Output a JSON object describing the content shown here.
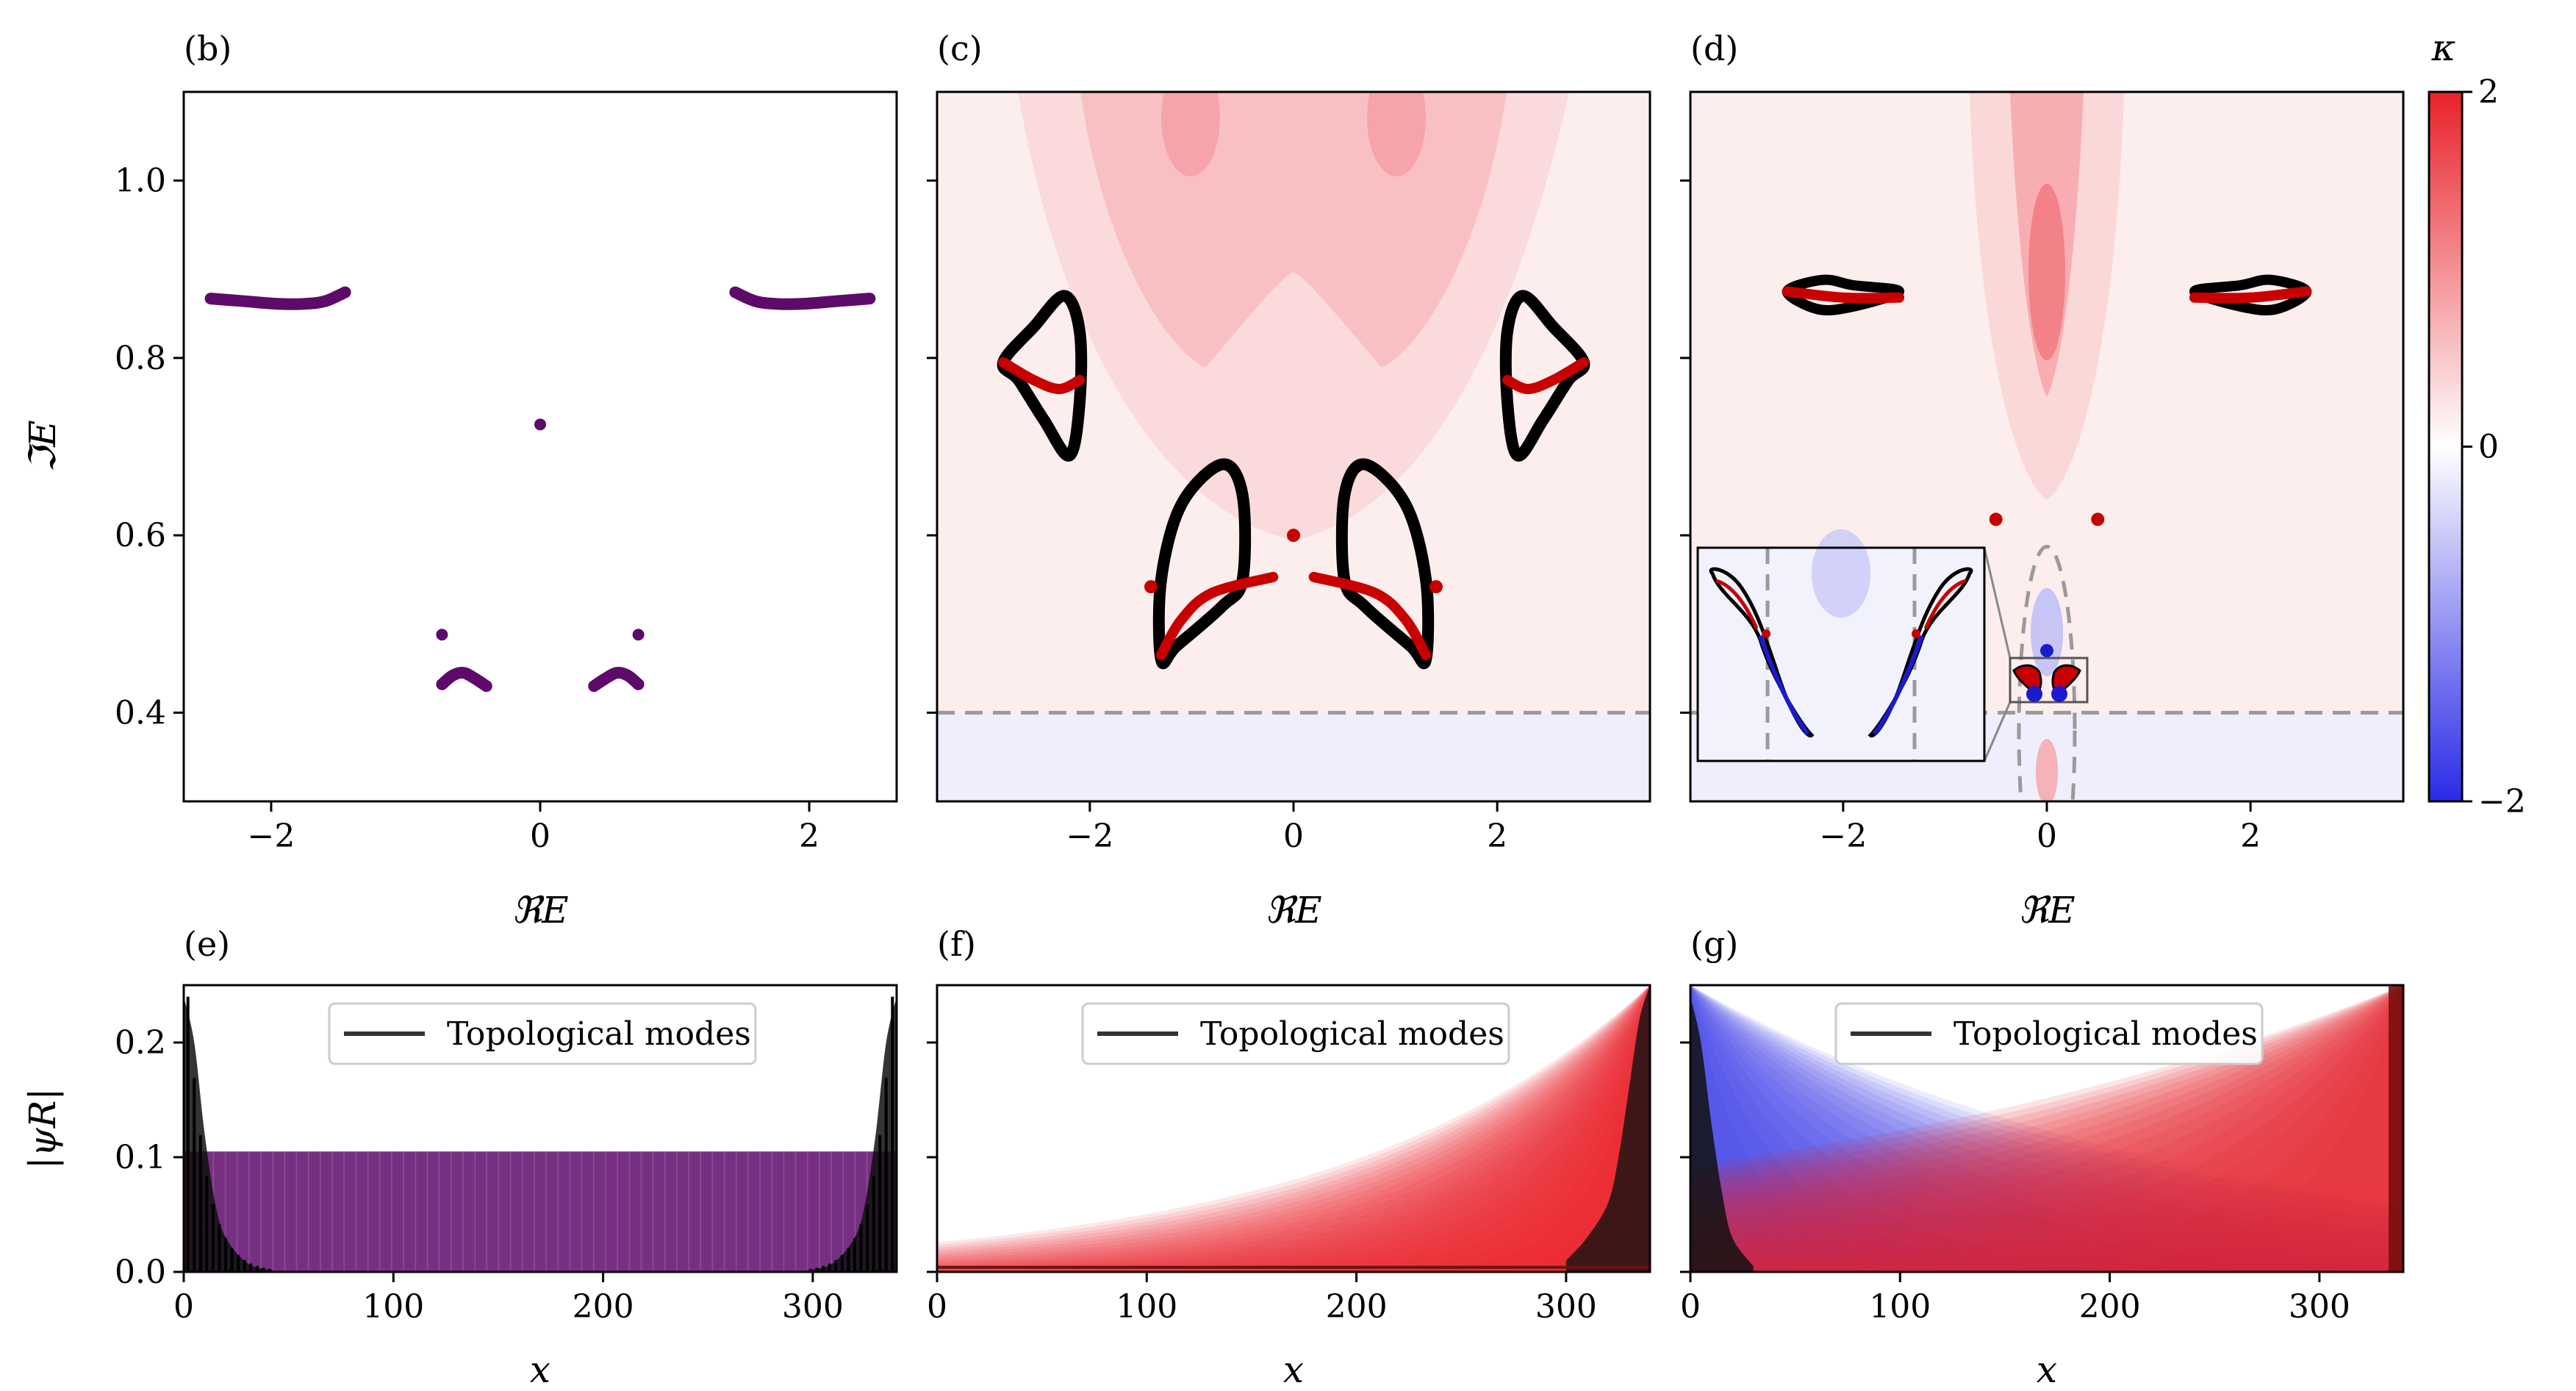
{
  "panels": {
    "b": {
      "label": "(b)"
    },
    "c": {
      "label": "(c)"
    },
    "d": {
      "label": "(d)"
    },
    "e": {
      "label": "(e)"
    },
    "f": {
      "label": "(f)"
    },
    "g": {
      "label": "(g)"
    }
  },
  "labels": {
    "re_axis": "ℜE",
    "im_axis": "ℑE",
    "x_axis": "x",
    "psi_axis": "|ψR|",
    "legend": "Topological modes",
    "colorbar_title": "κ"
  },
  "colors": {
    "purple": "#5e0a6b",
    "spectrum_black": "#000000",
    "red": "#c80000",
    "blue": "#1a1ad0",
    "dashed": "#9a9a9a",
    "kappa_positive": "#e8222a",
    "kappa_negative": "#2a2ae8"
  },
  "chart_data": [
    {
      "panel": "b",
      "type": "scatter",
      "xlabel": "ℜE",
      "ylabel": "ℑE",
      "xlim": [
        -2.65,
        2.65
      ],
      "ylim": [
        0.3,
        1.1
      ],
      "xticks": [
        -2,
        0,
        2
      ],
      "xtick_labels": [
        "−2",
        "0",
        "2"
      ],
      "yticks": [
        0.4,
        0.6,
        0.8,
        1.0
      ],
      "ytick_labels": [
        "0.4",
        "0.6",
        "0.8",
        "1.0"
      ],
      "series": [
        {
          "arc": "left-upper",
          "x": [
            -2.45,
            -2.2,
            -1.95,
            -1.75,
            -1.6,
            -1.45
          ],
          "y": [
            0.867,
            0.864,
            0.861,
            0.861,
            0.864,
            0.874
          ]
        },
        {
          "arc": "right-upper",
          "x": [
            1.45,
            1.6,
            1.75,
            1.95,
            2.2,
            2.45
          ],
          "y": [
            0.874,
            0.864,
            0.861,
            0.861,
            0.864,
            0.867
          ]
        },
        {
          "arc": "left-lower",
          "x": [
            -0.73,
            -0.65,
            -0.57,
            -0.48,
            -0.4
          ],
          "y": [
            0.432,
            0.442,
            0.445,
            0.438,
            0.43
          ]
        },
        {
          "arc": "right-lower",
          "x": [
            0.4,
            0.48,
            0.57,
            0.65,
            0.73
          ],
          "y": [
            0.43,
            0.438,
            0.445,
            0.442,
            0.432
          ]
        }
      ],
      "points": [
        [
          0,
          0.725
        ],
        [
          -0.73,
          0.488
        ],
        [
          0.73,
          0.488
        ]
      ]
    },
    {
      "panel": "c",
      "type": "heatmap",
      "xlabel": "ℜE",
      "xlim": [
        -3.5,
        3.5
      ],
      "ylim": [
        0.3,
        1.1
      ],
      "xticks": [
        -2,
        0,
        2
      ],
      "xtick_labels": [
        "−2",
        "0",
        "2"
      ],
      "dashed_line_y": 0.4,
      "loops": [
        {
          "name": "upper-left",
          "outline": [
            [
              -2.85,
              0.795
            ],
            [
              -2.7,
              0.775
            ],
            [
              -2.45,
              0.73
            ],
            [
              -2.2,
              0.69
            ],
            [
              -2.1,
              0.75
            ],
            [
              -2.1,
              0.83
            ],
            [
              -2.25,
              0.87
            ],
            [
              -2.55,
              0.835
            ]
          ],
          "branch": [
            [
              -2.85,
              0.795
            ],
            [
              -2.55,
              0.775
            ],
            [
              -2.3,
              0.765
            ],
            [
              -2.1,
              0.775
            ]
          ]
        },
        {
          "name": "upper-right",
          "outline": [
            [
              2.85,
              0.795
            ],
            [
              2.7,
              0.775
            ],
            [
              2.45,
              0.73
            ],
            [
              2.2,
              0.69
            ],
            [
              2.1,
              0.75
            ],
            [
              2.1,
              0.83
            ],
            [
              2.25,
              0.87
            ],
            [
              2.55,
              0.835
            ]
          ],
          "branch": [
            [
              2.85,
              0.795
            ],
            [
              2.55,
              0.775
            ],
            [
              2.3,
              0.765
            ],
            [
              2.1,
              0.775
            ]
          ]
        },
        {
          "name": "lower-left",
          "outline": [
            [
              -1.3,
              0.46
            ],
            [
              -1.3,
              0.55
            ],
            [
              -1.1,
              0.635
            ],
            [
              -0.7,
              0.68
            ],
            [
              -0.5,
              0.645
            ],
            [
              -0.5,
              0.55
            ],
            [
              -0.7,
              0.52
            ],
            [
              -1.15,
              0.475
            ]
          ],
          "branch": [
            [
              -1.3,
              0.465
            ],
            [
              -1.1,
              0.505
            ],
            [
              -0.8,
              0.535
            ],
            [
              -0.2,
              0.553
            ]
          ]
        },
        {
          "name": "lower-right",
          "outline": [
            [
              1.3,
              0.46
            ],
            [
              1.3,
              0.55
            ],
            [
              1.1,
              0.635
            ],
            [
              0.7,
              0.68
            ],
            [
              0.5,
              0.645
            ],
            [
              0.5,
              0.55
            ],
            [
              0.7,
              0.52
            ],
            [
              1.15,
              0.475
            ]
          ],
          "branch": [
            [
              1.3,
              0.465
            ],
            [
              1.1,
              0.505
            ],
            [
              0.8,
              0.535
            ],
            [
              0.2,
              0.553
            ]
          ]
        }
      ],
      "points": [
        [
          0,
          0.6
        ],
        [
          -1.4,
          0.542
        ],
        [
          1.4,
          0.542
        ]
      ]
    },
    {
      "panel": "d",
      "type": "heatmap",
      "xlabel": "ℜE",
      "xlim": [
        -3.5,
        3.5
      ],
      "ylim": [
        0.3,
        1.1
      ],
      "xticks": [
        -2,
        0,
        2
      ],
      "xtick_labels": [
        "−2",
        "0",
        "2"
      ],
      "dashed_line_y": 0.4,
      "loops": [
        {
          "name": "left",
          "outline": [
            [
              -2.55,
              0.875
            ],
            [
              -2.2,
              0.888
            ],
            [
              -1.9,
              0.882
            ],
            [
              -1.45,
              0.875
            ],
            [
              -1.9,
              0.858
            ],
            [
              -2.25,
              0.855
            ]
          ],
          "branch": [
            [
              -2.55,
              0.875
            ],
            [
              -2.0,
              0.868
            ],
            [
              -1.45,
              0.868
            ]
          ]
        },
        {
          "name": "right",
          "outline": [
            [
              2.55,
              0.875
            ],
            [
              2.2,
              0.888
            ],
            [
              1.9,
              0.882
            ],
            [
              1.45,
              0.875
            ],
            [
              1.9,
              0.858
            ],
            [
              2.25,
              0.855
            ]
          ],
          "branch": [
            [
              2.55,
              0.875
            ],
            [
              2.0,
              0.868
            ],
            [
              1.45,
              0.868
            ]
          ]
        }
      ],
      "points": [
        [
          -0.5,
          0.618
        ],
        [
          0.5,
          0.618
        ],
        [
          0,
          0.47
        ]
      ],
      "inset": {
        "shape": "two-loop",
        "branch_colors": [
          "#c80000",
          "#1a1ad0"
        ]
      },
      "colorbar": {
        "label": "κ",
        "min": -2,
        "max": 2,
        "ticks": [
          -2,
          0,
          2
        ],
        "tick_labels": [
          "−2",
          "0",
          "2"
        ]
      }
    },
    {
      "panel": "e",
      "type": "area",
      "xlabel": "x",
      "ylabel": "|ψR|",
      "xlim": [
        0,
        340
      ],
      "ylim": [
        0,
        0.25
      ],
      "xticks": [
        0,
        100,
        200,
        300
      ],
      "xtick_labels": [
        "0",
        "100",
        "200",
        "300"
      ],
      "yticks": [
        0.0,
        0.1,
        0.2
      ],
      "ytick_labels": [
        "0.0",
        "0.1",
        "0.2"
      ],
      "bulk_level": 0.105,
      "bulk_x": [
        0,
        340
      ],
      "bulk_color": "#5e0a6b",
      "series": [
        {
          "name": "Topological modes",
          "x": [
            0,
            5,
            10,
            15,
            20,
            30,
            40,
            50,
            290,
            300,
            310,
            320,
            325,
            330,
            335,
            340
          ],
          "y": [
            0.24,
            0.2,
            0.12,
            0.06,
            0.03,
            0.008,
            0.002,
            0,
            0,
            0.002,
            0.008,
            0.03,
            0.06,
            0.12,
            0.2,
            0.24
          ]
        }
      ]
    },
    {
      "panel": "f",
      "type": "area",
      "xlabel": "x",
      "xlim": [
        0,
        340
      ],
      "ylim": [
        0,
        0.25
      ],
      "xticks": [
        0,
        100,
        200,
        300
      ],
      "xtick_labels": [
        "0",
        "100",
        "200",
        "300"
      ],
      "bulk_color": "#e8222a",
      "bulk_profile": "skin-right",
      "series": [
        {
          "name": "Topological modes",
          "x": [
            300,
            310,
            320,
            325,
            330,
            335,
            340
          ],
          "y": [
            0.01,
            0.03,
            0.06,
            0.1,
            0.16,
            0.22,
            0.25
          ]
        }
      ]
    },
    {
      "panel": "g",
      "type": "area",
      "xlabel": "x",
      "xlim": [
        0,
        340
      ],
      "ylim": [
        0,
        0.25
      ],
      "xticks": [
        0,
        100,
        200,
        300
      ],
      "xtick_labels": [
        "0",
        "100",
        "200",
        "300"
      ],
      "bulk_colors": [
        "#2a2ae8",
        "#e8222a"
      ],
      "bulk_profile": "blue-left-red-right",
      "series": [
        {
          "name": "Topological modes",
          "x": [
            0,
            5,
            10,
            15,
            20,
            30
          ],
          "y": [
            0.24,
            0.2,
            0.13,
            0.07,
            0.03,
            0.005
          ]
        }
      ]
    }
  ]
}
